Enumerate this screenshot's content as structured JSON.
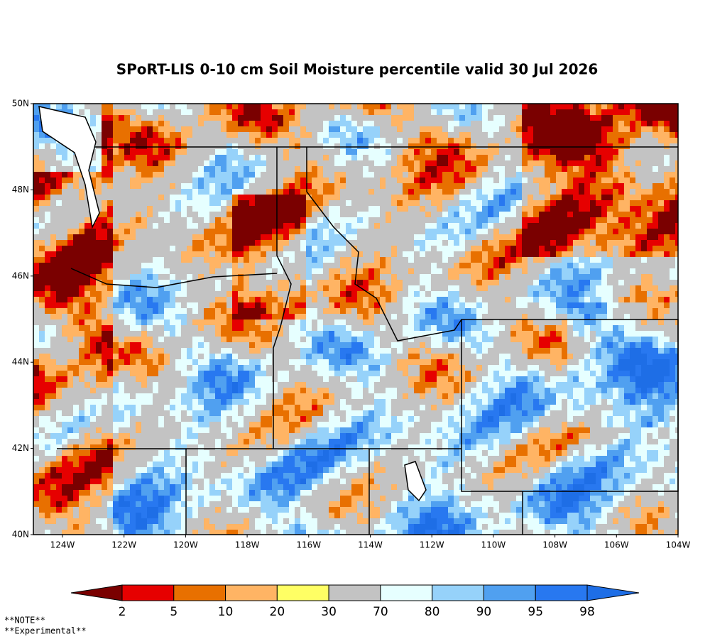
{
  "header": {
    "title": "SPoRT-LIS 0-10 cm Soil Moisture percentile valid 30 Jul 2026"
  },
  "map": {
    "lat_labels": [
      "50N",
      "48N",
      "46N",
      "44N",
      "42N",
      "40N"
    ],
    "lon_labels": [
      "124W",
      "122W",
      "120W",
      "118W",
      "116W",
      "114W",
      "112W",
      "110W",
      "108W",
      "106W",
      "104W"
    ]
  },
  "colorbar": {
    "ticks": [
      2,
      5,
      10,
      20,
      30,
      70,
      80,
      90,
      95,
      98
    ],
    "colors": [
      "#7a0000",
      "#e60000",
      "#e87000",
      "#ffb464",
      "#ffff64",
      "#c3c3c3",
      "#e6ffff",
      "#96d2fa",
      "#50a0f0",
      "#2878f0",
      "#1e6ee6"
    ]
  },
  "notes": [
    "**NOTE**",
    "**Experimental**"
  ]
}
